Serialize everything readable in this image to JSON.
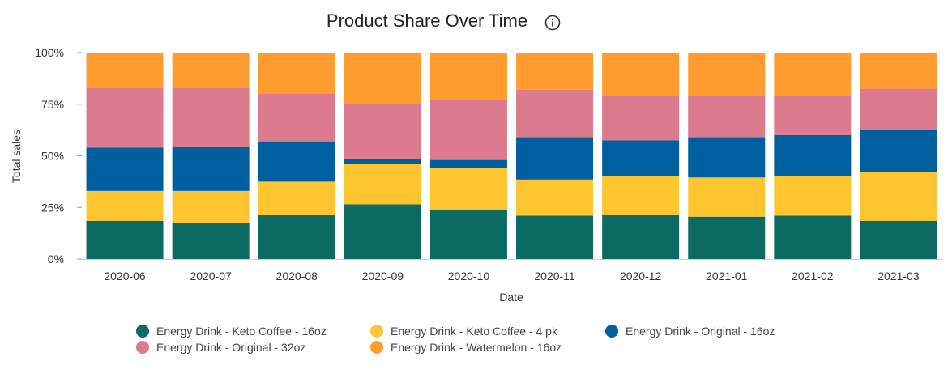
{
  "header": {
    "title": "Product Share Over Time",
    "info_icon": "info-icon"
  },
  "chart_data": {
    "type": "bar",
    "stacked": true,
    "normalized": true,
    "title": "Product Share Over Time",
    "xlabel": "Date",
    "ylabel": "Total sales",
    "ylim": [
      0,
      100
    ],
    "yticks": [
      "0%",
      "25%",
      "50%",
      "75%",
      "100%"
    ],
    "ytick_values": [
      0,
      25,
      50,
      75,
      100
    ],
    "grid": false,
    "legend_position": "bottom",
    "categories": [
      "2020-06",
      "2020-07",
      "2020-08",
      "2020-09",
      "2020-10",
      "2020-11",
      "2020-12",
      "2021-01",
      "2021-02",
      "2021-03"
    ],
    "series": [
      {
        "name": "Energy Drink - Keto Coffee - 16oz",
        "color": "#0b6b63",
        "values": [
          18.5,
          17.5,
          21.5,
          26.5,
          24,
          21,
          21.5,
          20.5,
          21,
          18.5
        ]
      },
      {
        "name": "Energy Drink - Keto Coffee - 4 pk",
        "color": "#fdc530",
        "values": [
          14.5,
          15.5,
          16,
          19.5,
          20,
          17.5,
          18.5,
          19,
          19,
          23.5
        ]
      },
      {
        "name": "Energy Drink - Original - 16oz",
        "color": "#005f9e",
        "values": [
          21,
          21.5,
          19.5,
          2.5,
          4,
          20.5,
          17.5,
          19.5,
          20,
          20.5
        ]
      },
      {
        "name": "Energy Drink - Original - 32oz",
        "color": "#db7b8d",
        "values": [
          29,
          28.5,
          23,
          26.5,
          29.5,
          23,
          22,
          20.5,
          19.5,
          20
        ]
      },
      {
        "name": "Energy Drink - Watermelon - 16oz",
        "color": "#ff9c2f",
        "values": [
          17,
          17,
          20,
          25,
          22.5,
          18,
          20.5,
          20.5,
          20.5,
          17.5
        ]
      }
    ]
  }
}
